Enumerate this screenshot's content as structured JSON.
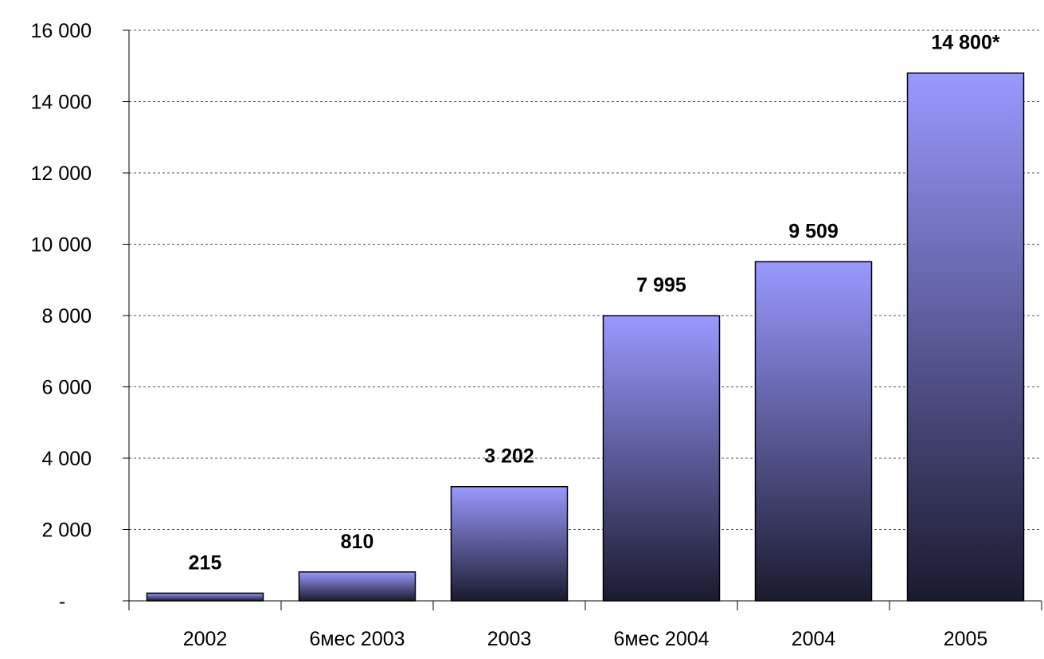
{
  "chart_data": {
    "type": "bar",
    "title": "",
    "xlabel": "",
    "ylabel": "",
    "categories": [
      "2002",
      "6мес 2003",
      "2003",
      "6мес 2004",
      "2004",
      "2005"
    ],
    "values": [
      215,
      810,
      3202,
      7995,
      9509,
      14800
    ],
    "data_labels": [
      "215",
      "810",
      "3 202",
      "7 995",
      "9 509",
      "14 800*"
    ],
    "ylim": [
      0,
      16000
    ],
    "yticks": [
      0,
      2000,
      4000,
      6000,
      8000,
      10000,
      12000,
      14000,
      16000
    ],
    "ytick_labels": [
      "-",
      "2 000",
      "4 000",
      "6 000",
      "8 000",
      "10 000",
      "12 000",
      "14 000",
      "16 000"
    ],
    "grid": true,
    "legend": "none",
    "colors": {
      "bar_top": "#9999ff",
      "bar_bottom": "#1a1a2e",
      "grid": "#555555"
    }
  }
}
